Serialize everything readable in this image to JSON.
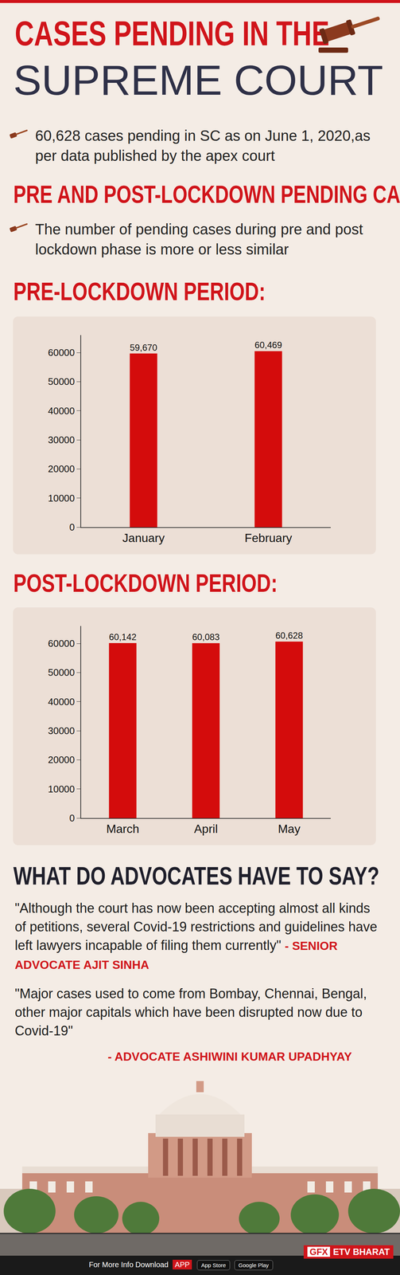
{
  "header": {
    "title_line1": "CASES PENDING IN THE",
    "title_line2": "SUPREME COURT"
  },
  "summary": "60,628 cases pending in SC as on June 1, 2020,as per data published by the apex court",
  "section_title": "PRE AND POST-LOCKDOWN PENDING CASES",
  "section_note": "The number of pending cases during pre and post lockdown phase is more or less similar",
  "chart_data": [
    {
      "type": "bar",
      "title": "PRE-LOCKDOWN PERIOD:",
      "categories": [
        "January",
        "February"
      ],
      "values": [
        59670,
        60469
      ],
      "value_labels": [
        "59,670",
        "60,469"
      ],
      "color": "#d40c0c",
      "ylim": [
        0,
        66000
      ],
      "yticks": [
        0,
        10000,
        20000,
        30000,
        40000,
        50000,
        60000
      ],
      "grid": false,
      "data_labels": true
    },
    {
      "type": "bar",
      "title": "POST-LOCKDOWN PERIOD:",
      "categories": [
        "March",
        "April",
        "May"
      ],
      "values": [
        60142,
        60083,
        60628
      ],
      "value_labels": [
        "60,142",
        "60,083",
        "60,628"
      ],
      "color": "#d40c0c",
      "ylim": [
        0,
        66000
      ],
      "yticks": [
        0,
        10000,
        20000,
        30000,
        40000,
        50000,
        60000
      ],
      "grid": false,
      "data_labels": true
    }
  ],
  "quotes_title": "WHAT DO ADVOCATES HAVE TO SAY?",
  "quotes": [
    {
      "text": "\"Although the court has now been accepting almost all kinds of petitions, several Covid-19 restrictions and guidelines have left lawyers incapable of filing them currently\"",
      "author": "- SENIOR ADVOCATE AJIT SINHA"
    },
    {
      "text": "\"Major cases used to come from Bombay, Chennai, Bengal, other major capitals which have been disrupted now due to Covid-19\"",
      "author": "- ADVOCATE ASHIWINI KUMAR UPADHYAY"
    }
  ],
  "footer": {
    "text": "For More Info Download",
    "app": "APP",
    "badges": [
      "App Store",
      "Google Play"
    ],
    "credit": [
      "GFX",
      "ETV BHARAT"
    ]
  }
}
